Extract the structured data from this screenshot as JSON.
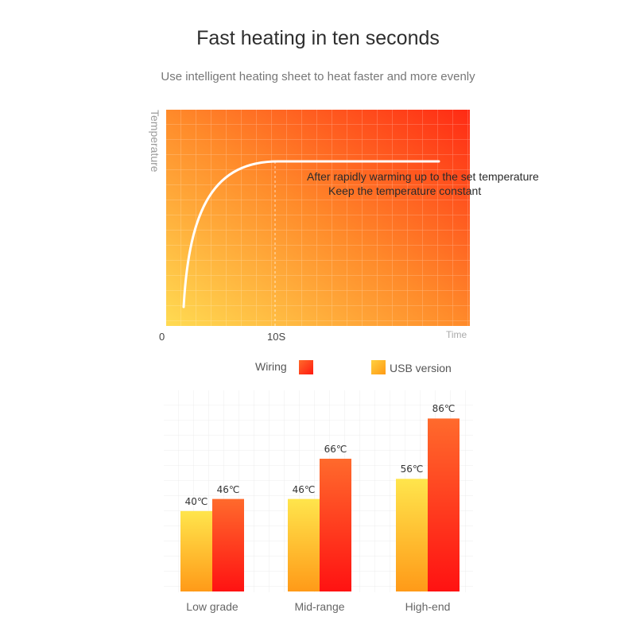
{
  "header": {
    "title": "Fast heating in ten seconds",
    "subtitle": "Use intelligent heating sheet to heat faster and more evenly"
  },
  "chart_data": [
    {
      "type": "line",
      "ylabel": "Temperature",
      "xlabel": "Time",
      "x_ticks": [
        "0",
        "10S"
      ],
      "annotation": [
        "After rapidly warming up to the set temperature",
        "Keep the temperature constant"
      ],
      "curve": "rises rapidly from a low temperature and levels off at about 10S, then stays constant",
      "grid": true,
      "background_gradient": [
        "#ffd84e",
        "#ff3416"
      ]
    },
    {
      "type": "bar",
      "categories": [
        "Low grade",
        "Mid-range",
        "High-end"
      ],
      "series": [
        {
          "name": "USB version",
          "values": [
            40,
            46,
            56
          ],
          "value_labels": [
            "40℃",
            "46℃",
            "56℃"
          ],
          "color_top": "#ffe248",
          "color_bottom": "#ff9a1a"
        },
        {
          "name": "Wiring",
          "values": [
            46,
            66,
            86
          ],
          "value_labels": [
            "46℃",
            "66℃",
            "86℃"
          ],
          "color_top": "#ff5a2a",
          "color_bottom": "#ff1010"
        }
      ],
      "ylim": [
        0,
        100
      ],
      "grid": true,
      "legend_position": "top-center"
    }
  ],
  "legend": {
    "wiring_label": "Wiring",
    "usb_label": "USB version",
    "wiring_color": "#ff3a18",
    "usb_color": "#ffaa18"
  }
}
